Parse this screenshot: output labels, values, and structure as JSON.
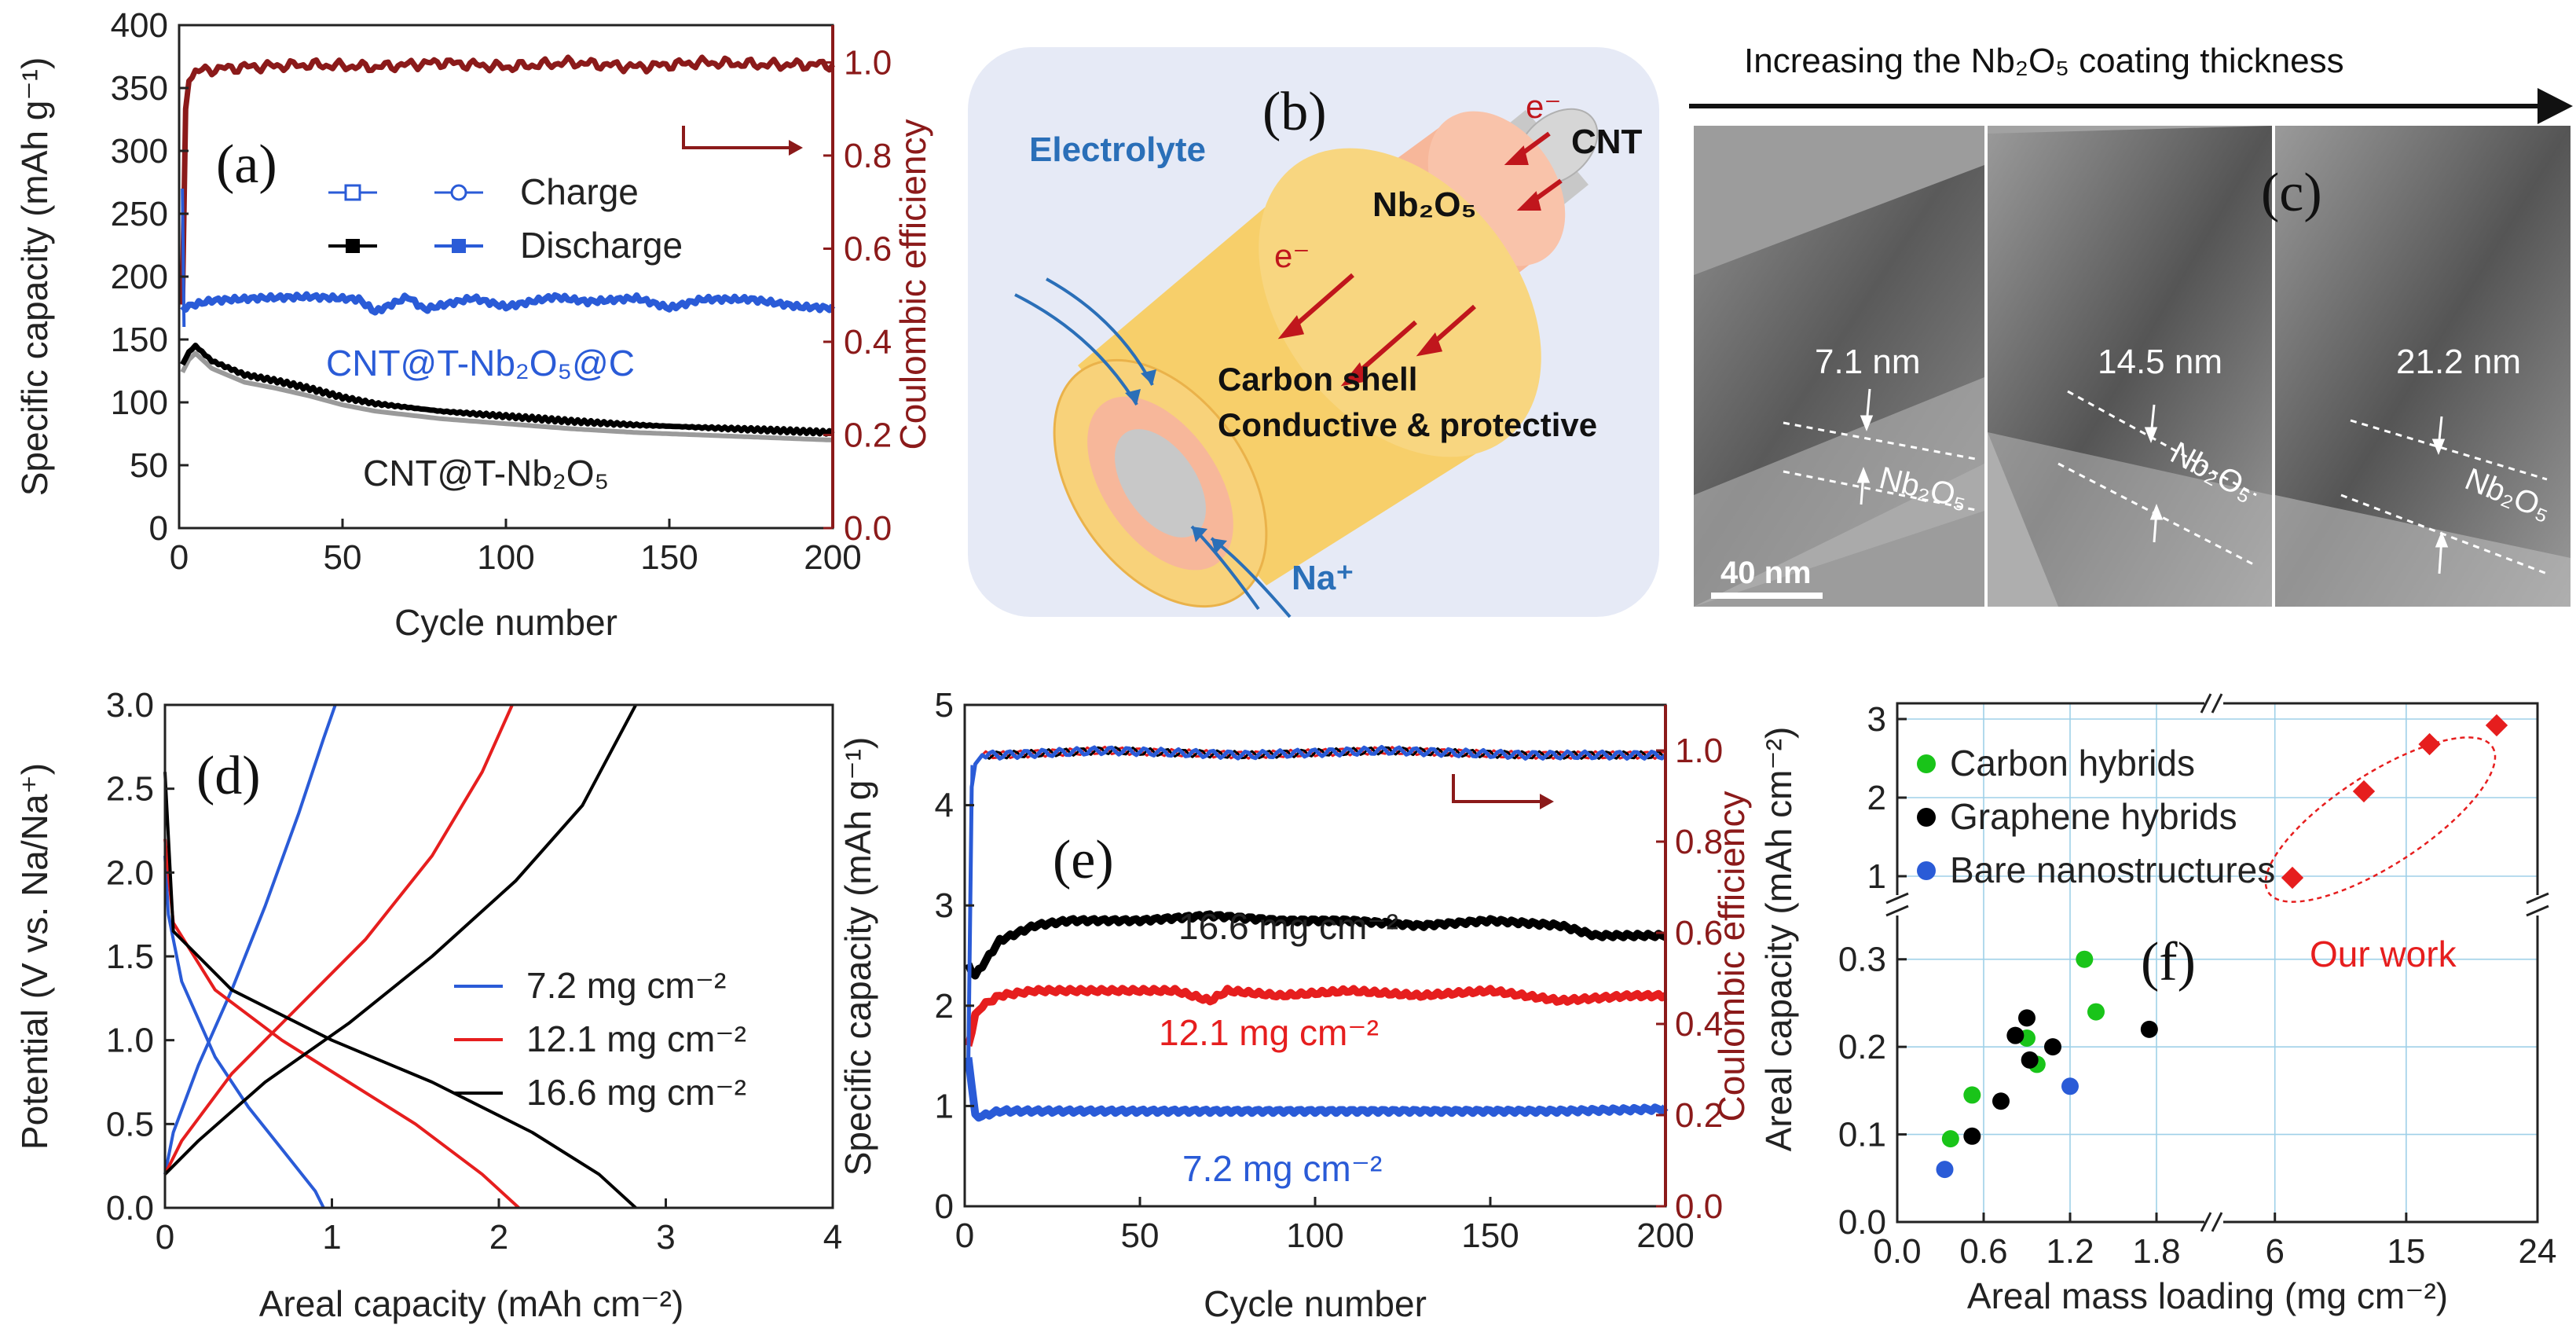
{
  "colors": {
    "dark_red": "#8b1a1a",
    "blue": "#2a5bd7",
    "black": "#000000",
    "red": "#e61e1e",
    "green": "#19c419",
    "diagram_bg": "#e6eaf6",
    "nb2o5": "#f7b79a",
    "carbon": "#f7cf6a",
    "cnt": "#c8c8c8",
    "electrolyte_text": "#2a6fb8",
    "arrow_red": "#c0161c"
  },
  "chart_data": [
    {
      "panel": "(a)",
      "type": "line",
      "xlabel": "Cycle number",
      "ylabel": "Specific capacity (mAh g⁻¹)",
      "ylabel_right": "Coulombic efficiency",
      "xlim": [
        0,
        200
      ],
      "ylim": [
        0,
        400
      ],
      "ylim_right": [
        0,
        1.08
      ],
      "x_ticks": [
        "0",
        "50",
        "100",
        "150",
        "200"
      ],
      "y_ticks": [
        "0",
        "50",
        "100",
        "150",
        "200",
        "250",
        "300",
        "350",
        "400"
      ],
      "y_right_ticks": [
        "0.0",
        "0.2",
        "0.4",
        "0.6",
        "0.8",
        "1.0"
      ],
      "legend": [
        {
          "label": "Charge"
        },
        {
          "label": "Discharge"
        }
      ],
      "annotations": [
        "CNT@T-Nb₂O₅@C",
        "CNT@T-Nb₂O₅"
      ],
      "series": [
        {
          "name": "CNT@T-Nb2O5@C discharge",
          "x": [
            1,
            5,
            10,
            25,
            40,
            55,
            60,
            70,
            75,
            90,
            100,
            115,
            125,
            140,
            150,
            160,
            175,
            190,
            200
          ],
          "values": [
            175,
            178,
            181,
            183,
            184,
            182,
            172,
            184,
            174,
            183,
            176,
            184,
            180,
            183,
            175,
            182,
            182,
            176,
            175
          ]
        },
        {
          "name": "CNT@T-Nb2O5 discharge",
          "x": [
            1,
            3,
            5,
            10,
            20,
            30,
            40,
            50,
            60,
            70,
            80,
            90,
            100,
            120,
            140,
            160,
            180,
            200
          ],
          "values": [
            130,
            140,
            145,
            133,
            122,
            117,
            111,
            104,
            99,
            96,
            93,
            91,
            89,
            85,
            82,
            80,
            78,
            76
          ]
        },
        {
          "name": "Coulombic efficiency",
          "x": [
            1,
            2,
            3,
            5,
            10,
            20,
            40,
            60,
            80,
            100,
            120,
            140,
            160,
            180,
            200
          ],
          "values": [
            0.48,
            0.9,
            0.96,
            0.98,
            0.985,
            0.99,
            0.995,
            0.99,
            1.0,
            0.99,
            1.0,
            0.99,
            1.0,
            0.995,
            0.995
          ]
        }
      ]
    },
    {
      "panel": "(d)",
      "type": "line",
      "xlabel": "Areal capacity (mAh cm⁻²)",
      "ylabel": "Potential (V vs. Na/Na⁺)",
      "xlim": [
        0,
        4
      ],
      "ylim": [
        0,
        3
      ],
      "x_ticks": [
        "0",
        "1",
        "2",
        "3",
        "4"
      ],
      "y_ticks": [
        "0.0",
        "0.5",
        "1.0",
        "1.5",
        "2.0",
        "2.5",
        "3.0"
      ],
      "legend": [
        {
          "label": "7.2 mg cm⁻²"
        },
        {
          "label": "12.1 mg cm⁻²"
        },
        {
          "label": "16.6 mg cm⁻²"
        }
      ],
      "series": [
        {
          "name": "7.2 discharge",
          "x": [
            0,
            0.02,
            0.1,
            0.3,
            0.5,
            0.7,
            0.9,
            0.95
          ],
          "values": [
            2.1,
            1.75,
            1.35,
            0.9,
            0.6,
            0.35,
            0.1,
            0.0
          ]
        },
        {
          "name": "7.2 charge",
          "x": [
            0,
            0.05,
            0.2,
            0.4,
            0.6,
            0.8,
            0.95,
            1.02
          ],
          "values": [
            0.2,
            0.45,
            0.85,
            1.3,
            1.8,
            2.35,
            2.8,
            3.0
          ]
        },
        {
          "name": "12.1 discharge",
          "x": [
            0,
            0.05,
            0.3,
            0.7,
            1.1,
            1.5,
            1.9,
            2.12
          ],
          "values": [
            2.2,
            1.7,
            1.3,
            1.0,
            0.75,
            0.5,
            0.2,
            0.0
          ]
        },
        {
          "name": "12.1 charge",
          "x": [
            0,
            0.1,
            0.4,
            0.8,
            1.2,
            1.6,
            1.9,
            2.08
          ],
          "values": [
            0.2,
            0.4,
            0.8,
            1.2,
            1.6,
            2.1,
            2.6,
            3.0
          ]
        },
        {
          "name": "16.6 discharge",
          "x": [
            0,
            0.05,
            0.4,
            1.0,
            1.6,
            2.2,
            2.6,
            2.82
          ],
          "values": [
            2.6,
            1.65,
            1.3,
            1.0,
            0.75,
            0.45,
            0.2,
            0.0
          ]
        },
        {
          "name": "16.6 charge",
          "x": [
            0,
            0.2,
            0.6,
            1.1,
            1.6,
            2.1,
            2.5,
            2.82
          ],
          "values": [
            0.2,
            0.4,
            0.75,
            1.1,
            1.5,
            1.95,
            2.4,
            3.0
          ]
        }
      ]
    },
    {
      "panel": "(e)",
      "type": "line",
      "xlabel": "Cycle number",
      "ylabel": "Specific capacity (mAh g⁻¹)",
      "ylabel_right": "Coulombic efficiency",
      "xlim": [
        0,
        200
      ],
      "ylim": [
        0,
        5
      ],
      "ylim_right": [
        0,
        1.1
      ],
      "x_ticks": [
        "0",
        "50",
        "100",
        "150",
        "200"
      ],
      "y_ticks": [
        "0",
        "1",
        "2",
        "3",
        "4",
        "5"
      ],
      "y_right_ticks": [
        "0.0",
        "0.2",
        "0.4",
        "0.6",
        "0.8",
        "1.0"
      ],
      "annotations": [
        "16.6 mg cm⁻²",
        "12.1 mg cm⁻²",
        "7.2 mg cm⁻²"
      ],
      "series": [
        {
          "name": "16.6 mg cm-2",
          "x": [
            1,
            3,
            5,
            10,
            20,
            30,
            50,
            70,
            90,
            110,
            130,
            150,
            170,
            180,
            200
          ],
          "values": [
            2.4,
            2.3,
            2.4,
            2.65,
            2.8,
            2.85,
            2.85,
            2.9,
            2.85,
            2.85,
            2.8,
            2.85,
            2.8,
            2.7,
            2.7
          ]
        },
        {
          "name": "12.1 mg cm-2",
          "x": [
            1,
            3,
            5,
            10,
            20,
            40,
            60,
            70,
            75,
            90,
            110,
            130,
            150,
            170,
            190,
            200
          ],
          "values": [
            1.6,
            1.9,
            2.0,
            2.1,
            2.15,
            2.15,
            2.15,
            2.05,
            2.15,
            2.1,
            2.15,
            2.1,
            2.15,
            2.05,
            2.1,
            2.1
          ]
        },
        {
          "name": "7.2 mg cm-2",
          "x": [
            1,
            3,
            5,
            10,
            30,
            50,
            80,
            110,
            140,
            170,
            200
          ],
          "values": [
            1.5,
            0.9,
            0.9,
            0.95,
            0.95,
            0.95,
            0.95,
            0.95,
            0.95,
            0.95,
            0.97
          ]
        },
        {
          "name": "Coulombic efficiency",
          "x": [
            1,
            2,
            3,
            5,
            10,
            40,
            80,
            120,
            160,
            200
          ],
          "values": [
            0.3,
            0.92,
            0.97,
            0.99,
            0.99,
            1.0,
            0.99,
            1.0,
            0.99,
            0.99
          ]
        }
      ]
    },
    {
      "panel": "(f)",
      "type": "scatter",
      "xlabel": "Areal mass loading (mg cm⁻²)",
      "ylabel": "Areal capacity (mAh cm⁻²)",
      "x_ticks": [
        "0.0",
        "0.6",
        "1.2",
        "1.8",
        "6",
        "15",
        "24"
      ],
      "y_ticks": [
        "0.0",
        "0.1",
        "0.2",
        "0.3",
        "1",
        "2",
        "3"
      ],
      "legend": [
        {
          "label": "Carbon hybrids"
        },
        {
          "label": "Graphene hybrids"
        },
        {
          "label": "Bare nanostructures"
        }
      ],
      "annotations": [
        "Our work"
      ],
      "series": [
        {
          "name": "Carbon hybrids",
          "x": [
            0.37,
            0.52,
            0.9,
            0.97,
            1.3,
            1.38
          ],
          "values": [
            0.095,
            0.145,
            0.21,
            0.18,
            0.3,
            0.24
          ]
        },
        {
          "name": "Graphene hybrids",
          "x": [
            0.52,
            0.72,
            0.82,
            0.9,
            0.92,
            1.08,
            1.75
          ],
          "values": [
            0.098,
            0.138,
            0.213,
            0.233,
            0.185,
            0.2,
            0.22
          ]
        },
        {
          "name": "Bare nanostructures",
          "x": [
            0.33,
            1.2
          ],
          "values": [
            0.06,
            0.155
          ]
        },
        {
          "name": "Our work",
          "x": [
            7.2,
            12.1,
            16.6,
            21.2
          ],
          "values": [
            0.98,
            2.08,
            2.68,
            2.92
          ]
        }
      ]
    }
  ],
  "diagram_b": {
    "panel": "(b)",
    "electrolyte": "Electrolyte",
    "nb2o5": "Nb₂O₅",
    "cnt": "CNT",
    "electron": "e⁻",
    "carbon_shell": "Carbon shell",
    "conductive": "Conductive & protective",
    "na_ion": "Na⁺"
  },
  "tem_c": {
    "panel": "(c)",
    "header": "Increasing the Nb₂O₅ coating thickness",
    "thickness": [
      "7.1 nm",
      "14.5 nm",
      "21.2 nm"
    ],
    "layer_label": "Nb₂O₅",
    "scale_bar": "40 nm"
  }
}
